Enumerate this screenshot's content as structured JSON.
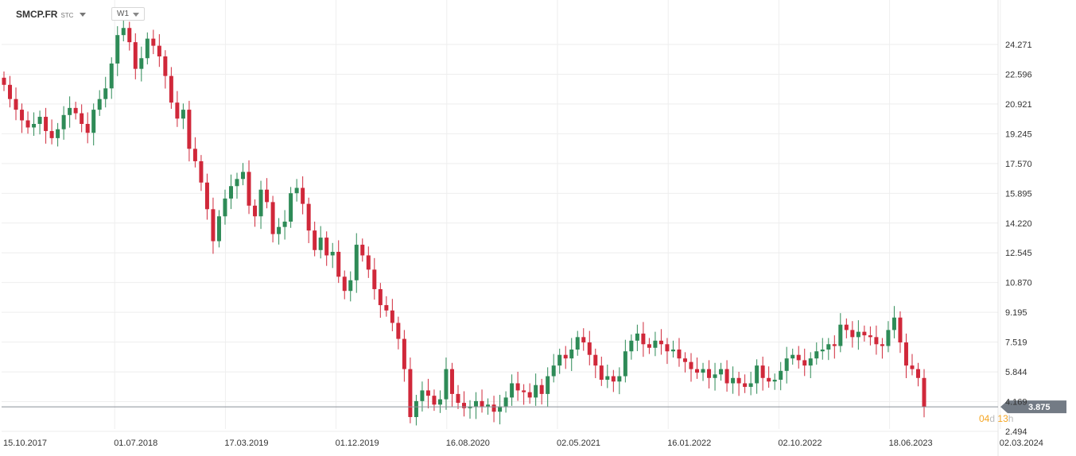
{
  "header": {
    "symbol": "SMCP.FR",
    "symbol_type": "STC",
    "timeframe": "W1"
  },
  "countdown": {
    "days": "04",
    "days_unit": "d",
    "hours": "13",
    "hours_unit": "h"
  },
  "colors": {
    "up": "#2e8b57",
    "down": "#d0283a",
    "grid": "#eeeeee",
    "last_price_bg": "#737b85"
  },
  "chart_data": {
    "type": "candlestick",
    "title": "",
    "xlabel": "",
    "ylabel": "",
    "ylim": [
      2.0,
      26.2
    ],
    "y_ticks": [
      "24.271",
      "22.596",
      "20.921",
      "19.245",
      "17.570",
      "15.895",
      "14.220",
      "12.545",
      "10.870",
      "9.195",
      "7.519",
      "5.844",
      "4.169",
      "2.494"
    ],
    "x_ticks": [
      "15.10.2017",
      "01.07.2018",
      "17.03.2019",
      "01.12.2019",
      "16.08.2020",
      "02.05.2021",
      "16.01.2022",
      "02.10.2022",
      "18.06.2023",
      "02.03.2024"
    ],
    "last_price": "3.875",
    "grid": true,
    "series_close": [
      22.0,
      21.2,
      20.6,
      20.0,
      19.6,
      19.8,
      20.2,
      19.4,
      19.0,
      19.5,
      20.3,
      20.7,
      20.4,
      19.8,
      19.3,
      20.6,
      21.2,
      21.8,
      23.2,
      24.8,
      25.2,
      24.4,
      22.9,
      23.5,
      24.6,
      24.2,
      23.6,
      22.5,
      21.0,
      20.1,
      20.6,
      18.4,
      17.7,
      16.5,
      15.0,
      13.2,
      14.6,
      15.6,
      16.3,
      16.7,
      17.1,
      15.2,
      14.6,
      16.1,
      15.4,
      13.6,
      14.0,
      14.3,
      15.9,
      16.2,
      15.3,
      13.8,
      12.7,
      13.4,
      12.4,
      12.6,
      11.2,
      10.4,
      11.0,
      13.0,
      12.4,
      11.6,
      10.5,
      9.6,
      9.3,
      8.6,
      7.7,
      6.0,
      3.3,
      4.2,
      4.8,
      4.5,
      4.0,
      4.3,
      6.0,
      4.6,
      4.1,
      3.8,
      3.9,
      4.2,
      3.9,
      4.0,
      3.6,
      3.9,
      4.4,
      5.2,
      4.8,
      4.7,
      4.4,
      5.1,
      4.6,
      5.6,
      6.2,
      6.8,
      6.6,
      7.1,
      7.8,
      7.5,
      6.8,
      6.2,
      5.4,
      5.6,
      5.3,
      5.6,
      7.0,
      7.6,
      8.0,
      7.4,
      7.2,
      7.6,
      7.4,
      7.0,
      7.1,
      6.6,
      6.4,
      6.0,
      5.8,
      6.0,
      5.5,
      5.7,
      6.0,
      5.2,
      5.5,
      5.2,
      5.0,
      5.2,
      6.2,
      5.5,
      5.3,
      5.4,
      5.9,
      6.6,
      6.8,
      6.5,
      6.2,
      6.6,
      7.0,
      7.1,
      7.4,
      7.3,
      8.5,
      8.2,
      7.8,
      8.1,
      7.9,
      7.8,
      7.4,
      7.3,
      8.2,
      8.9,
      7.5,
      6.2,
      6.0,
      5.5,
      3.875
    ]
  }
}
